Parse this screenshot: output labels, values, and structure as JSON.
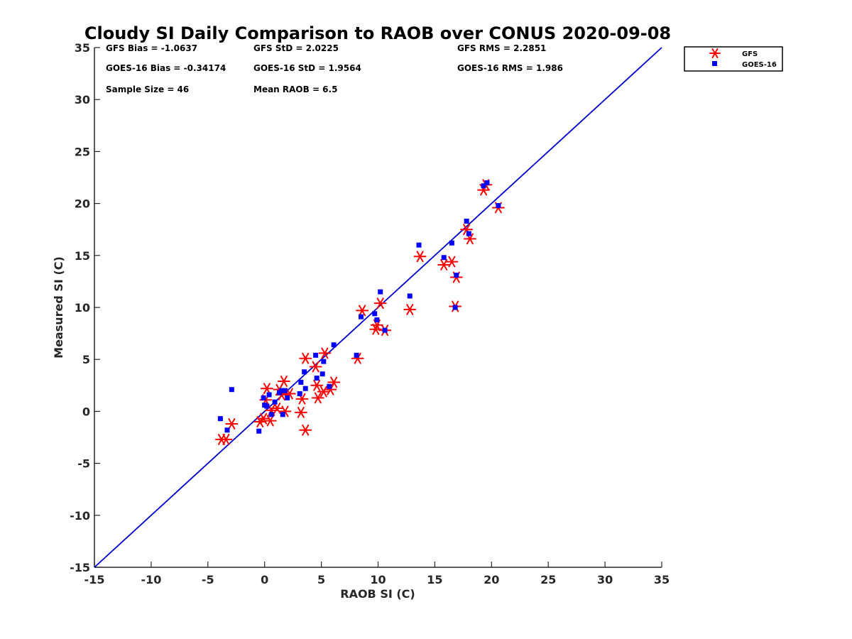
{
  "chart_data": {
    "type": "scatter",
    "title": "Cloudy SI Daily Comparison to RAOB over CONUS 2020-09-08",
    "xlabel": "RAOB SI (C)",
    "ylabel": "Measured SI (C)",
    "xlim": [
      -15,
      35
    ],
    "ylim": [
      -15,
      35
    ],
    "xticks": [
      -15,
      -10,
      -5,
      0,
      5,
      10,
      15,
      20,
      25,
      30,
      35
    ],
    "yticks": [
      -15,
      -10,
      -5,
      0,
      5,
      10,
      15,
      20,
      25,
      30,
      35
    ],
    "grid": false,
    "legend_position": "outside-top-right",
    "reference_line": {
      "from": [
        -15,
        -15
      ],
      "to": [
        35,
        35
      ],
      "color": "#0000cc"
    },
    "stats": {
      "gfs_bias": "GFS Bias = -1.0637",
      "gfs_std": "GFS StD = 2.0225",
      "gfs_rms": "GFS RMS = 2.2851",
      "goes_bias": "GOES-16 Bias = -0.34174",
      "goes_std": "GOES-16 StD = 1.9564",
      "goes_rms": "GOES-16 RMS = 1.986",
      "sample_size": "Sample Size = 46",
      "mean_raob": "Mean RAOB = 6.5"
    },
    "series": [
      {
        "name": "GFS",
        "marker": "asterisk",
        "color": "#ff0000",
        "points": [
          [
            -3.8,
            -2.7
          ],
          [
            -3.4,
            -2.7
          ],
          [
            -2.9,
            -1.2
          ],
          [
            -0.4,
            -1.0
          ],
          [
            -0.1,
            -0.7
          ],
          [
            0.1,
            1.1
          ],
          [
            0.2,
            2.2
          ],
          [
            0.5,
            -0.9
          ],
          [
            0.6,
            0.1
          ],
          [
            1.1,
            0.3
          ],
          [
            1.3,
            2.1
          ],
          [
            1.5,
            1.6
          ],
          [
            1.7,
            2.9
          ],
          [
            1.8,
            0.0
          ],
          [
            2.2,
            1.7
          ],
          [
            3.2,
            -0.1
          ],
          [
            3.3,
            1.2
          ],
          [
            3.6,
            5.1
          ],
          [
            3.6,
            -1.8
          ],
          [
            4.5,
            4.3
          ],
          [
            4.6,
            2.5
          ],
          [
            4.7,
            1.3
          ],
          [
            5.2,
            1.9
          ],
          [
            5.3,
            5.6
          ],
          [
            5.8,
            2.1
          ],
          [
            6.1,
            2.8
          ],
          [
            8.2,
            5.1
          ],
          [
            8.6,
            9.7
          ],
          [
            9.8,
            7.9
          ],
          [
            9.9,
            8.3
          ],
          [
            10.2,
            10.4
          ],
          [
            10.6,
            7.8
          ],
          [
            12.8,
            9.8
          ],
          [
            13.7,
            14.9
          ],
          [
            15.8,
            14.1
          ],
          [
            16.5,
            14.4
          ],
          [
            16.8,
            10.1
          ],
          [
            16.9,
            12.9
          ],
          [
            17.8,
            17.5
          ],
          [
            18.1,
            16.6
          ],
          [
            19.3,
            21.3
          ],
          [
            19.5,
            21.8
          ],
          [
            20.6,
            19.6
          ]
        ]
      },
      {
        "name": "GOES-16",
        "marker": "square",
        "color": "#0000ff",
        "points": [
          [
            -3.9,
            -0.7
          ],
          [
            -3.3,
            -1.8
          ],
          [
            -2.9,
            2.1
          ],
          [
            -0.5,
            -1.9
          ],
          [
            -0.1,
            1.3
          ],
          [
            0.0,
            0.6
          ],
          [
            0.2,
            0.5
          ],
          [
            0.4,
            1.6
          ],
          [
            0.6,
            -0.3
          ],
          [
            0.9,
            0.9
          ],
          [
            1.3,
            1.8
          ],
          [
            1.5,
            2.0
          ],
          [
            1.6,
            -0.3
          ],
          [
            1.8,
            2.0
          ],
          [
            2.0,
            1.3
          ],
          [
            3.1,
            1.7
          ],
          [
            3.2,
            2.8
          ],
          [
            3.5,
            3.8
          ],
          [
            3.6,
            2.2
          ],
          [
            4.5,
            5.4
          ],
          [
            4.6,
            3.2
          ],
          [
            5.1,
            3.6
          ],
          [
            5.2,
            4.8
          ],
          [
            5.7,
            2.4
          ],
          [
            6.1,
            6.4
          ],
          [
            8.1,
            5.4
          ],
          [
            8.5,
            9.1
          ],
          [
            9.7,
            9.4
          ],
          [
            9.9,
            8.8
          ],
          [
            10.2,
            11.5
          ],
          [
            10.6,
            7.8
          ],
          [
            12.8,
            11.1
          ],
          [
            13.6,
            16.0
          ],
          [
            15.8,
            14.8
          ],
          [
            16.5,
            16.2
          ],
          [
            16.8,
            10.0
          ],
          [
            16.9,
            13.1
          ],
          [
            17.8,
            18.3
          ],
          [
            18.0,
            17.1
          ],
          [
            19.3,
            21.7
          ],
          [
            19.6,
            22.0
          ],
          [
            20.6,
            19.8
          ]
        ]
      }
    ]
  }
}
